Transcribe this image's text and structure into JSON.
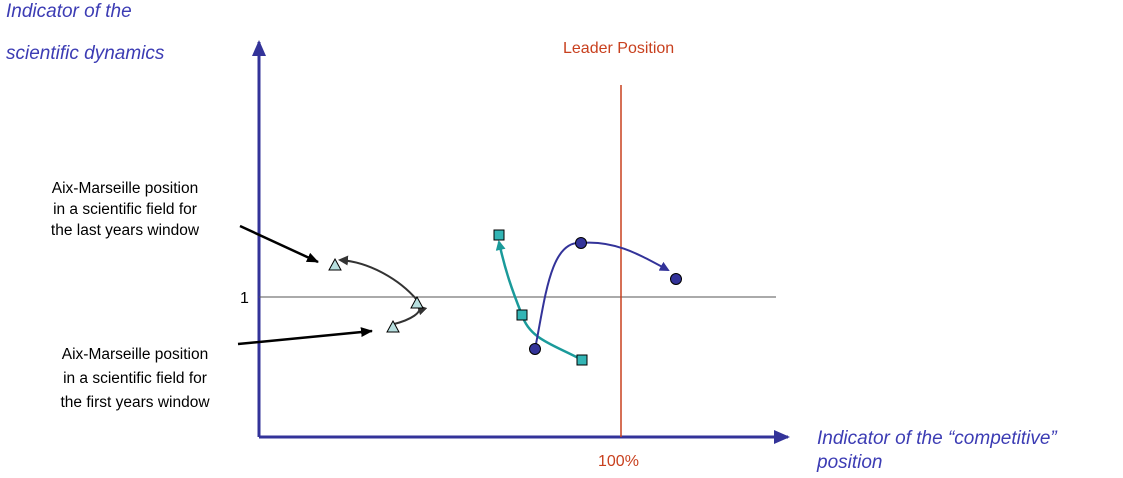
{
  "axes": {
    "y_label": [
      "Indicator of the",
      "scientific dynamics"
    ],
    "x_label": [
      "Indicator of the “competitive”",
      "position"
    ],
    "y_reference": "1",
    "x_reference": "100%"
  },
  "leader_label": "Leader Position",
  "annotations": [
    {
      "lines": [
        "Aix-Marseille position",
        "in a scientific field for",
        "the last years window"
      ]
    },
    {
      "lines": [
        "Aix-Marseille position",
        "in a scientific field for",
        "the first years window"
      ]
    }
  ]
}
